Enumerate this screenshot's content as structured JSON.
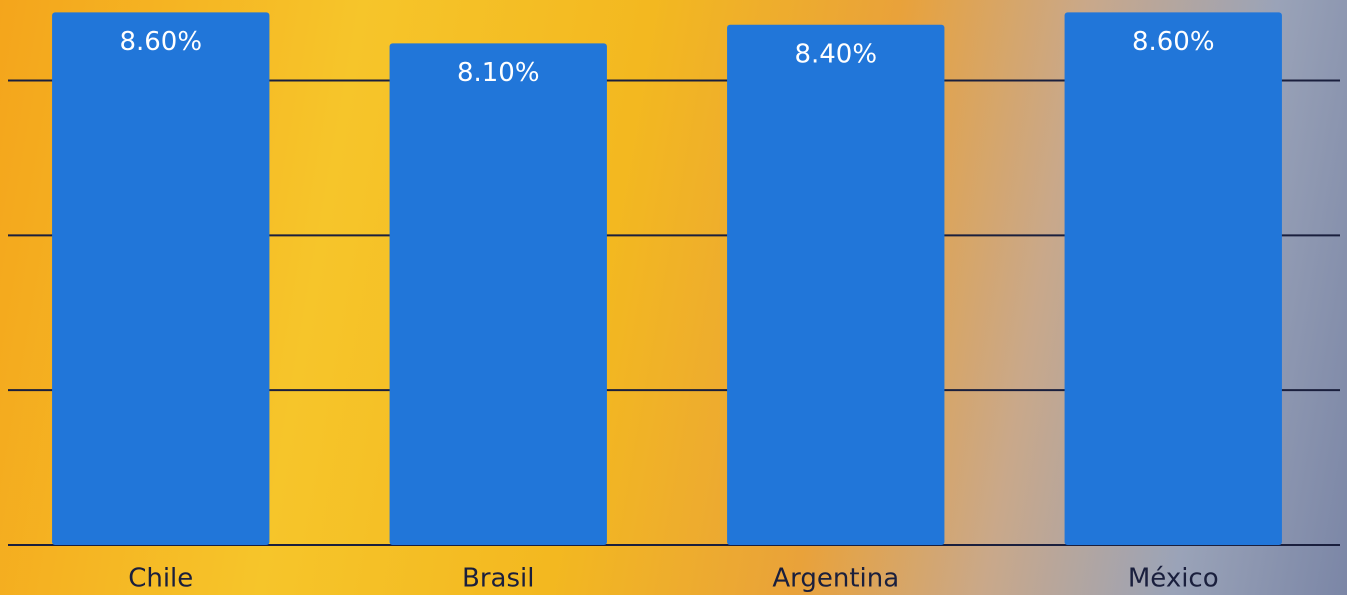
{
  "chart_data": {
    "type": "bar",
    "categories": [
      "Chile",
      "Brasil",
      "Argentina",
      "México"
    ],
    "values": [
      8.6,
      8.1,
      8.4,
      8.6
    ],
    "value_labels": [
      "8.60%",
      "8.10%",
      "8.40%",
      "8.60%"
    ],
    "color": "#2176d9",
    "ylim": [
      0,
      8.8
    ],
    "yticks": [
      0,
      2.5,
      5,
      7.5
    ],
    "grid": true
  }
}
